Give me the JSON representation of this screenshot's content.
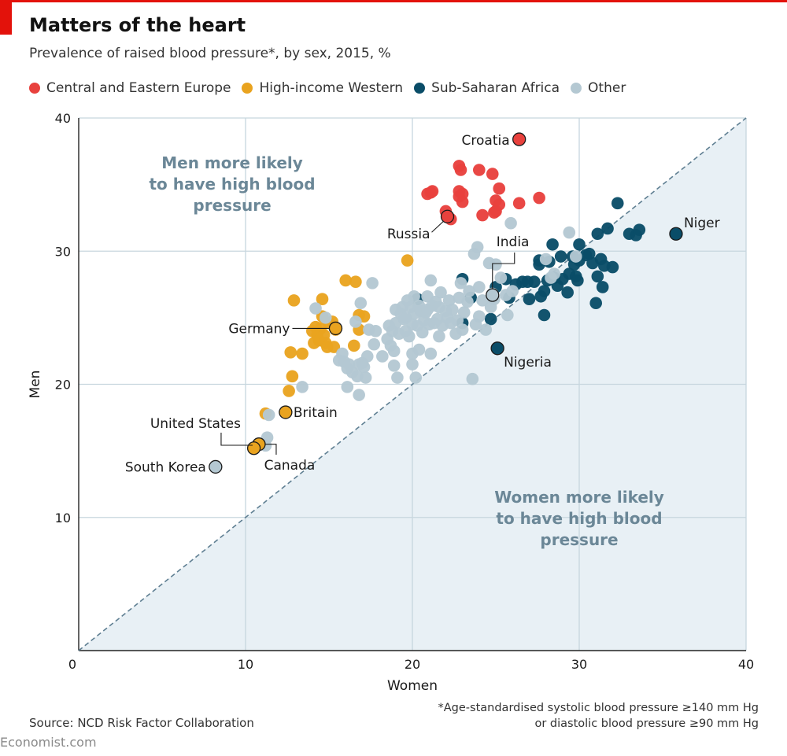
{
  "header": {
    "title": "Matters of the heart",
    "subtitle": "Prevalence of raised blood pressure*, by sex, 2015, %"
  },
  "legend": [
    {
      "label": "Central and Eastern Europe",
      "color": "#e8413d"
    },
    {
      "label": "High-income Western",
      "color": "#e9a31f"
    },
    {
      "label": "Sub-Saharan Africa",
      "color": "#0a4d68"
    },
    {
      "label": "Other",
      "color": "#b4c8d2"
    }
  ],
  "footer": {
    "source": "Source: NCD Risk Factor Collaboration",
    "note_line1": "*Age-standardised systolic blood pressure ≥140 mm Hg",
    "note_line2": "or diastolic blood pressure ≥90 mm Hg",
    "brand": "Economist.com"
  },
  "chart_data": {
    "type": "scatter",
    "title": "Matters of the heart",
    "subtitle": "Prevalence of raised blood pressure*, by sex, 2015, %",
    "xlabel": "Women",
    "ylabel": "Men",
    "xlim": [
      0,
      40
    ],
    "ylim": [
      0,
      40
    ],
    "xticks": [
      0,
      10,
      20,
      30,
      40
    ],
    "yticks": [
      0,
      10,
      20,
      30,
      40
    ],
    "grid": true,
    "reference_line": "y = x (dashed)",
    "region_labels": {
      "upper": [
        "Men more likely",
        "to have high blood",
        "pressure"
      ],
      "lower": [
        "Women more likely",
        "to have high blood",
        "pressure"
      ]
    },
    "colors": {
      "cee": "#e8413d",
      "west": "#e9a31f",
      "ssa": "#0a4d68",
      "other": "#b4c8d2"
    },
    "series": [
      {
        "name": "Central and Eastern Europe",
        "key": "cee",
        "points": [
          [
            20.9,
            34.3
          ],
          [
            21.1,
            34.4
          ],
          [
            21.2,
            34.5
          ],
          [
            22.8,
            36.4
          ],
          [
            22.9,
            36.1
          ],
          [
            22.8,
            34.5
          ],
          [
            22.8,
            34.1
          ],
          [
            23.0,
            34.3
          ],
          [
            23.0,
            33.7
          ],
          [
            24.0,
            36.1
          ],
          [
            24.2,
            32.7
          ],
          [
            24.9,
            32.9
          ],
          [
            25.0,
            33.0
          ],
          [
            24.8,
            35.8
          ],
          [
            25.2,
            34.7
          ],
          [
            25.0,
            33.8
          ],
          [
            25.2,
            33.5
          ],
          [
            26.4,
            33.6
          ],
          [
            27.6,
            34.0
          ],
          [
            22.0,
            33.0
          ],
          [
            22.3,
            32.4
          ]
        ]
      },
      {
        "name": "High-income Western",
        "key": "west",
        "points": [
          [
            11.2,
            17.8
          ],
          [
            12.6,
            19.5
          ],
          [
            12.8,
            20.6
          ],
          [
            12.7,
            22.4
          ],
          [
            12.9,
            26.3
          ],
          [
            13.4,
            22.3
          ],
          [
            14.0,
            24.0
          ],
          [
            14.1,
            23.1
          ],
          [
            14.2,
            24.3
          ],
          [
            14.3,
            23.7
          ],
          [
            14.4,
            23.3
          ],
          [
            14.5,
            24.2
          ],
          [
            14.6,
            25.1
          ],
          [
            14.6,
            26.4
          ],
          [
            14.7,
            23.7
          ],
          [
            14.8,
            23.1
          ],
          [
            14.9,
            22.8
          ],
          [
            15.0,
            24.6
          ],
          [
            15.2,
            24.7
          ],
          [
            15.3,
            22.8
          ],
          [
            15.4,
            24.1
          ],
          [
            16.0,
            27.8
          ],
          [
            16.6,
            27.7
          ],
          [
            16.8,
            24.1
          ],
          [
            16.8,
            25.2
          ],
          [
            17.1,
            25.1
          ],
          [
            19.7,
            29.3
          ],
          [
            16.5,
            22.9
          ]
        ]
      },
      {
        "name": "Sub-Saharan Africa",
        "key": "ssa",
        "points": [
          [
            20.3,
            26.4
          ],
          [
            23.0,
            24.6
          ],
          [
            23.0,
            27.9
          ],
          [
            23.5,
            26.5
          ],
          [
            24.7,
            24.9
          ],
          [
            25.0,
            27.3
          ],
          [
            25.6,
            27.9
          ],
          [
            25.8,
            26.5
          ],
          [
            26.2,
            27.5
          ],
          [
            26.6,
            27.7
          ],
          [
            26.9,
            27.7
          ],
          [
            27.0,
            26.4
          ],
          [
            27.3,
            27.7
          ],
          [
            27.6,
            29.0
          ],
          [
            27.6,
            29.3
          ],
          [
            27.7,
            26.6
          ],
          [
            27.9,
            25.2
          ],
          [
            27.9,
            27.0
          ],
          [
            28.1,
            27.8
          ],
          [
            28.2,
            29.2
          ],
          [
            28.4,
            30.5
          ],
          [
            28.5,
            28.0
          ],
          [
            28.7,
            27.4
          ],
          [
            28.9,
            29.6
          ],
          [
            29.0,
            27.9
          ],
          [
            29.3,
            26.9
          ],
          [
            29.4,
            28.3
          ],
          [
            29.6,
            29.6
          ],
          [
            29.7,
            29.0
          ],
          [
            29.8,
            28.1
          ],
          [
            29.9,
            27.8
          ],
          [
            30.0,
            29.3
          ],
          [
            30.0,
            30.5
          ],
          [
            30.4,
            29.7
          ],
          [
            30.6,
            29.8
          ],
          [
            30.8,
            29.1
          ],
          [
            31.0,
            26.1
          ],
          [
            31.1,
            28.1
          ],
          [
            31.1,
            31.3
          ],
          [
            31.3,
            29.4
          ],
          [
            31.4,
            27.3
          ],
          [
            31.5,
            28.9
          ],
          [
            31.7,
            31.7
          ],
          [
            32.0,
            28.8
          ],
          [
            32.3,
            33.6
          ],
          [
            33.0,
            31.3
          ],
          [
            33.4,
            31.2
          ],
          [
            33.6,
            31.6
          ],
          [
            25.1,
            22.7
          ],
          [
            35.8,
            31.3
          ]
        ]
      },
      {
        "name": "Other",
        "key": "other",
        "points": [
          [
            8.2,
            13.8
          ],
          [
            11.2,
            15.4
          ],
          [
            11.3,
            16.0
          ],
          [
            11.4,
            17.7
          ],
          [
            13.4,
            19.8
          ],
          [
            14.2,
            25.7
          ],
          [
            14.8,
            25.0
          ],
          [
            15.6,
            21.8
          ],
          [
            15.8,
            22.3
          ],
          [
            15.9,
            21.7
          ],
          [
            16.1,
            21.2
          ],
          [
            16.1,
            19.8
          ],
          [
            16.2,
            21.5
          ],
          [
            16.4,
            20.9
          ],
          [
            16.6,
            24.7
          ],
          [
            16.7,
            20.6
          ],
          [
            16.8,
            19.2
          ],
          [
            16.8,
            21.5
          ],
          [
            16.9,
            26.1
          ],
          [
            17.0,
            21.6
          ],
          [
            17.1,
            21.3
          ],
          [
            17.2,
            20.5
          ],
          [
            17.3,
            22.1
          ],
          [
            17.4,
            24.1
          ],
          [
            17.6,
            27.6
          ],
          [
            17.7,
            23.0
          ],
          [
            17.8,
            24.0
          ],
          [
            18.2,
            22.1
          ],
          [
            18.5,
            23.4
          ],
          [
            18.6,
            24.4
          ],
          [
            18.7,
            22.9
          ],
          [
            18.8,
            24.0
          ],
          [
            18.9,
            21.4
          ],
          [
            18.9,
            22.5
          ],
          [
            19.0,
            24.6
          ],
          [
            19.0,
            25.6
          ],
          [
            19.1,
            20.5
          ],
          [
            19.2,
            23.8
          ],
          [
            19.3,
            25.3
          ],
          [
            19.4,
            25.8
          ],
          [
            19.5,
            24.9
          ],
          [
            19.6,
            25.0
          ],
          [
            19.6,
            24.0
          ],
          [
            19.7,
            26.3
          ],
          [
            19.8,
            23.6
          ],
          [
            19.9,
            25.8
          ],
          [
            20.0,
            21.5
          ],
          [
            20.0,
            22.3
          ],
          [
            20.0,
            24.5
          ],
          [
            20.1,
            25.3
          ],
          [
            20.1,
            26.6
          ],
          [
            20.2,
            20.5
          ],
          [
            20.3,
            24.4
          ],
          [
            20.4,
            25.9
          ],
          [
            20.4,
            22.6
          ],
          [
            20.5,
            25.5
          ],
          [
            20.6,
            23.9
          ],
          [
            20.7,
            24.8
          ],
          [
            20.8,
            25.4
          ],
          [
            20.9,
            25.6
          ],
          [
            20.9,
            26.6
          ],
          [
            21.0,
            24.5
          ],
          [
            21.1,
            22.3
          ],
          [
            21.1,
            27.8
          ],
          [
            21.2,
            25.9
          ],
          [
            21.3,
            24.6
          ],
          [
            21.4,
            26.2
          ],
          [
            21.5,
            24.9
          ],
          [
            21.6,
            23.6
          ],
          [
            21.6,
            25.8
          ],
          [
            21.7,
            26.9
          ],
          [
            21.8,
            24.4
          ],
          [
            22.0,
            25.5
          ],
          [
            22.1,
            25.0
          ],
          [
            22.2,
            26.3
          ],
          [
            22.3,
            24.6
          ],
          [
            22.4,
            25.6
          ],
          [
            22.6,
            23.8
          ],
          [
            22.7,
            24.8
          ],
          [
            22.8,
            26.5
          ],
          [
            22.9,
            27.6
          ],
          [
            23.0,
            24.1
          ],
          [
            23.1,
            25.4
          ],
          [
            23.3,
            26.2
          ],
          [
            23.4,
            27.0
          ],
          [
            23.6,
            20.4
          ],
          [
            23.7,
            29.8
          ],
          [
            23.8,
            24.5
          ],
          [
            23.9,
            30.3
          ],
          [
            24.0,
            25.1
          ],
          [
            24.0,
            27.3
          ],
          [
            24.2,
            26.3
          ],
          [
            24.4,
            24.1
          ],
          [
            24.6,
            29.1
          ],
          [
            24.7,
            25.8
          ],
          [
            24.9,
            26.4
          ],
          [
            25.0,
            29.0
          ],
          [
            25.3,
            28.0
          ],
          [
            25.6,
            26.7
          ],
          [
            25.7,
            25.2
          ],
          [
            25.9,
            32.1
          ],
          [
            26.0,
            27.0
          ],
          [
            28.0,
            29.4
          ],
          [
            28.3,
            28.0
          ],
          [
            28.5,
            28.3
          ],
          [
            29.4,
            31.4
          ],
          [
            29.8,
            29.6
          ],
          [
            24.8,
            26.8
          ],
          [
            24.8,
            26.6
          ]
        ]
      }
    ],
    "labelled_points": [
      {
        "label": "Croatia",
        "x": 26.4,
        "y": 38.4,
        "key": "cee"
      },
      {
        "label": "Russia",
        "x": 22.1,
        "y": 32.6,
        "key": "cee"
      },
      {
        "label": "India",
        "x": 24.8,
        "y": 26.7,
        "key": "other"
      },
      {
        "label": "Niger",
        "x": 35.8,
        "y": 31.3,
        "key": "ssa"
      },
      {
        "label": "Nigeria",
        "x": 25.1,
        "y": 22.7,
        "key": "ssa"
      },
      {
        "label": "Germany",
        "x": 15.4,
        "y": 24.2,
        "key": "west"
      },
      {
        "label": "Britain",
        "x": 12.4,
        "y": 17.9,
        "key": "west"
      },
      {
        "label": "United States",
        "x": 10.8,
        "y": 15.5,
        "key": "west"
      },
      {
        "label": "Canada",
        "x": 10.5,
        "y": 15.2,
        "key": "west"
      },
      {
        "label": "South Korea",
        "x": 8.2,
        "y": 13.8,
        "key": "other"
      }
    ]
  }
}
